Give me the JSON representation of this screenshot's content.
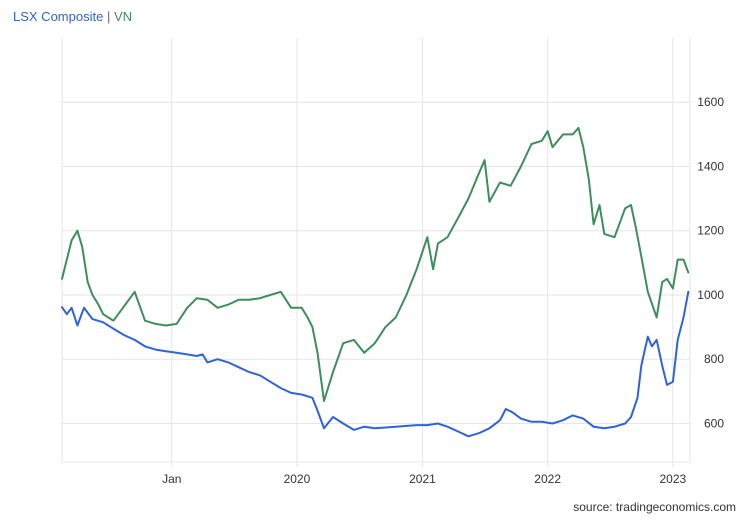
{
  "legend": {
    "series_a": "LSX Composite",
    "separator": "|",
    "series_b": "VN"
  },
  "source": "source: tradingeconomics.com",
  "chart_data": {
    "type": "line",
    "title": "",
    "xlabel": "",
    "ylabel": "",
    "x_tick_labels": [
      "Jan",
      "2020",
      "2021",
      "2022",
      "2023"
    ],
    "y_tick_labels": [
      "600",
      "800",
      "1000",
      "1200",
      "1400",
      "1600"
    ],
    "y_ticks": [
      600,
      800,
      1000,
      1200,
      1400,
      1600
    ],
    "ylim": [
      480,
      1800
    ],
    "xlim": [
      "2018-02-15",
      "2023-02-20"
    ],
    "x_tick_dates": [
      "2019-01-01",
      "2020-01-01",
      "2021-01-01",
      "2022-01-01",
      "2023-01-01"
    ],
    "y_axis_position": "right",
    "grid": true,
    "colors": {
      "LSX Composite": "#2d62e0",
      "VN": "#3c8f5b"
    },
    "series": [
      {
        "name": "LSX Composite",
        "points": [
          [
            "2018-02-15",
            962
          ],
          [
            "2018-03-01",
            940
          ],
          [
            "2018-03-15",
            960
          ],
          [
            "2018-04-01",
            905
          ],
          [
            "2018-04-20",
            960
          ],
          [
            "2018-05-15",
            925
          ],
          [
            "2018-06-15",
            915
          ],
          [
            "2018-07-15",
            895
          ],
          [
            "2018-08-15",
            875
          ],
          [
            "2018-09-15",
            860
          ],
          [
            "2018-10-15",
            840
          ],
          [
            "2018-11-15",
            830
          ],
          [
            "2018-12-15",
            825
          ],
          [
            "2019-01-15",
            820
          ],
          [
            "2019-02-15",
            815
          ],
          [
            "2019-03-15",
            810
          ],
          [
            "2019-04-01",
            815
          ],
          [
            "2019-04-15",
            790
          ],
          [
            "2019-05-15",
            800
          ],
          [
            "2019-06-15",
            790
          ],
          [
            "2019-07-15",
            775
          ],
          [
            "2019-08-15",
            760
          ],
          [
            "2019-09-15",
            750
          ],
          [
            "2019-10-15",
            730
          ],
          [
            "2019-11-15",
            710
          ],
          [
            "2019-12-15",
            695
          ],
          [
            "2020-01-15",
            690
          ],
          [
            "2020-02-15",
            680
          ],
          [
            "2020-03-01",
            640
          ],
          [
            "2020-03-20",
            585
          ],
          [
            "2020-04-15",
            620
          ],
          [
            "2020-05-15",
            600
          ],
          [
            "2020-06-15",
            580
          ],
          [
            "2020-07-15",
            590
          ],
          [
            "2020-08-15",
            585
          ],
          [
            "2020-10-15",
            590
          ],
          [
            "2020-12-15",
            595
          ],
          [
            "2021-01-15",
            595
          ],
          [
            "2021-02-15",
            600
          ],
          [
            "2021-03-15",
            590
          ],
          [
            "2021-04-15",
            575
          ],
          [
            "2021-05-15",
            560
          ],
          [
            "2021-06-15",
            570
          ],
          [
            "2021-07-15",
            585
          ],
          [
            "2021-08-15",
            610
          ],
          [
            "2021-09-01",
            645
          ],
          [
            "2021-09-20",
            635
          ],
          [
            "2021-10-15",
            615
          ],
          [
            "2021-11-15",
            605
          ],
          [
            "2021-12-15",
            605
          ],
          [
            "2022-01-15",
            600
          ],
          [
            "2022-02-15",
            610
          ],
          [
            "2022-03-15",
            625
          ],
          [
            "2022-04-15",
            615
          ],
          [
            "2022-05-15",
            590
          ],
          [
            "2022-06-15",
            585
          ],
          [
            "2022-07-15",
            590
          ],
          [
            "2022-08-15",
            600
          ],
          [
            "2022-09-01",
            620
          ],
          [
            "2022-09-20",
            680
          ],
          [
            "2022-10-01",
            780
          ],
          [
            "2022-10-20",
            870
          ],
          [
            "2022-11-01",
            840
          ],
          [
            "2022-11-15",
            860
          ],
          [
            "2022-12-01",
            780
          ],
          [
            "2022-12-15",
            720
          ],
          [
            "2023-01-01",
            730
          ],
          [
            "2023-01-15",
            860
          ],
          [
            "2023-02-01",
            930
          ],
          [
            "2023-02-15",
            1010
          ]
        ]
      },
      {
        "name": "VN",
        "points": [
          [
            "2018-02-15",
            1050
          ],
          [
            "2018-03-01",
            1110
          ],
          [
            "2018-03-15",
            1170
          ],
          [
            "2018-04-01",
            1200
          ],
          [
            "2018-04-15",
            1150
          ],
          [
            "2018-05-01",
            1040
          ],
          [
            "2018-05-15",
            1000
          ],
          [
            "2018-06-01",
            970
          ],
          [
            "2018-06-15",
            940
          ],
          [
            "2018-07-15",
            920
          ],
          [
            "2018-08-15",
            965
          ],
          [
            "2018-09-15",
            1010
          ],
          [
            "2018-10-15",
            920
          ],
          [
            "2018-11-15",
            910
          ],
          [
            "2018-12-15",
            905
          ],
          [
            "2019-01-15",
            910
          ],
          [
            "2019-02-15",
            960
          ],
          [
            "2019-03-15",
            990
          ],
          [
            "2019-04-15",
            985
          ],
          [
            "2019-05-15",
            960
          ],
          [
            "2019-06-15",
            970
          ],
          [
            "2019-07-15",
            985
          ],
          [
            "2019-08-15",
            985
          ],
          [
            "2019-09-15",
            990
          ],
          [
            "2019-10-15",
            1000
          ],
          [
            "2019-11-15",
            1010
          ],
          [
            "2019-12-15",
            960
          ],
          [
            "2020-01-15",
            960
          ],
          [
            "2020-02-01",
            930
          ],
          [
            "2020-02-15",
            900
          ],
          [
            "2020-03-01",
            820
          ],
          [
            "2020-03-20",
            670
          ],
          [
            "2020-04-15",
            760
          ],
          [
            "2020-05-15",
            850
          ],
          [
            "2020-06-15",
            860
          ],
          [
            "2020-07-15",
            820
          ],
          [
            "2020-08-15",
            850
          ],
          [
            "2020-09-15",
            900
          ],
          [
            "2020-10-15",
            930
          ],
          [
            "2020-11-15",
            1000
          ],
          [
            "2020-12-15",
            1080
          ],
          [
            "2021-01-15",
            1180
          ],
          [
            "2021-02-01",
            1080
          ],
          [
            "2021-02-15",
            1160
          ],
          [
            "2021-03-15",
            1180
          ],
          [
            "2021-04-15",
            1240
          ],
          [
            "2021-05-15",
            1300
          ],
          [
            "2021-06-15",
            1380
          ],
          [
            "2021-07-01",
            1420
          ],
          [
            "2021-07-15",
            1290
          ],
          [
            "2021-08-15",
            1350
          ],
          [
            "2021-09-15",
            1340
          ],
          [
            "2021-10-15",
            1400
          ],
          [
            "2021-11-15",
            1470
          ],
          [
            "2021-12-15",
            1480
          ],
          [
            "2022-01-01",
            1510
          ],
          [
            "2022-01-15",
            1460
          ],
          [
            "2022-02-15",
            1500
          ],
          [
            "2022-03-15",
            1500
          ],
          [
            "2022-04-01",
            1520
          ],
          [
            "2022-04-15",
            1460
          ],
          [
            "2022-05-01",
            1360
          ],
          [
            "2022-05-15",
            1220
          ],
          [
            "2022-06-01",
            1280
          ],
          [
            "2022-06-15",
            1190
          ],
          [
            "2022-07-15",
            1180
          ],
          [
            "2022-08-15",
            1270
          ],
          [
            "2022-09-01",
            1280
          ],
          [
            "2022-09-15",
            1210
          ],
          [
            "2022-10-01",
            1120
          ],
          [
            "2022-10-20",
            1010
          ],
          [
            "2022-11-15",
            930
          ],
          [
            "2022-12-01",
            1040
          ],
          [
            "2022-12-15",
            1050
          ],
          [
            "2023-01-01",
            1020
          ],
          [
            "2023-01-15",
            1110
          ],
          [
            "2023-02-01",
            1110
          ],
          [
            "2023-02-15",
            1070
          ]
        ]
      }
    ]
  }
}
